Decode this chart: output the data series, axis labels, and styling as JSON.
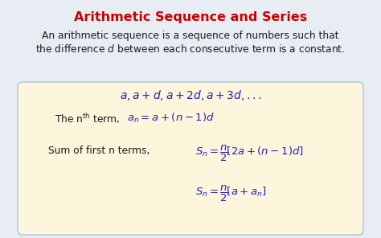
{
  "title": "Arithmetic Sequence and Series",
  "title_color": "#cc0000",
  "title_fontsize": 11.5,
  "bg_color": "#e8edf4",
  "box_color": "#fdf5dc",
  "box_edge_color": "#b8ccd8",
  "desc_line1": "An arithmetic sequence is a sequence of numbers such that",
  "text_color": "#1a1a1a",
  "blue_color": "#2222bb",
  "red_color": "#cc0000",
  "body_fontsize": 8.8,
  "formula_fontsize": 9.5,
  "seq_fontsize": 10.0
}
